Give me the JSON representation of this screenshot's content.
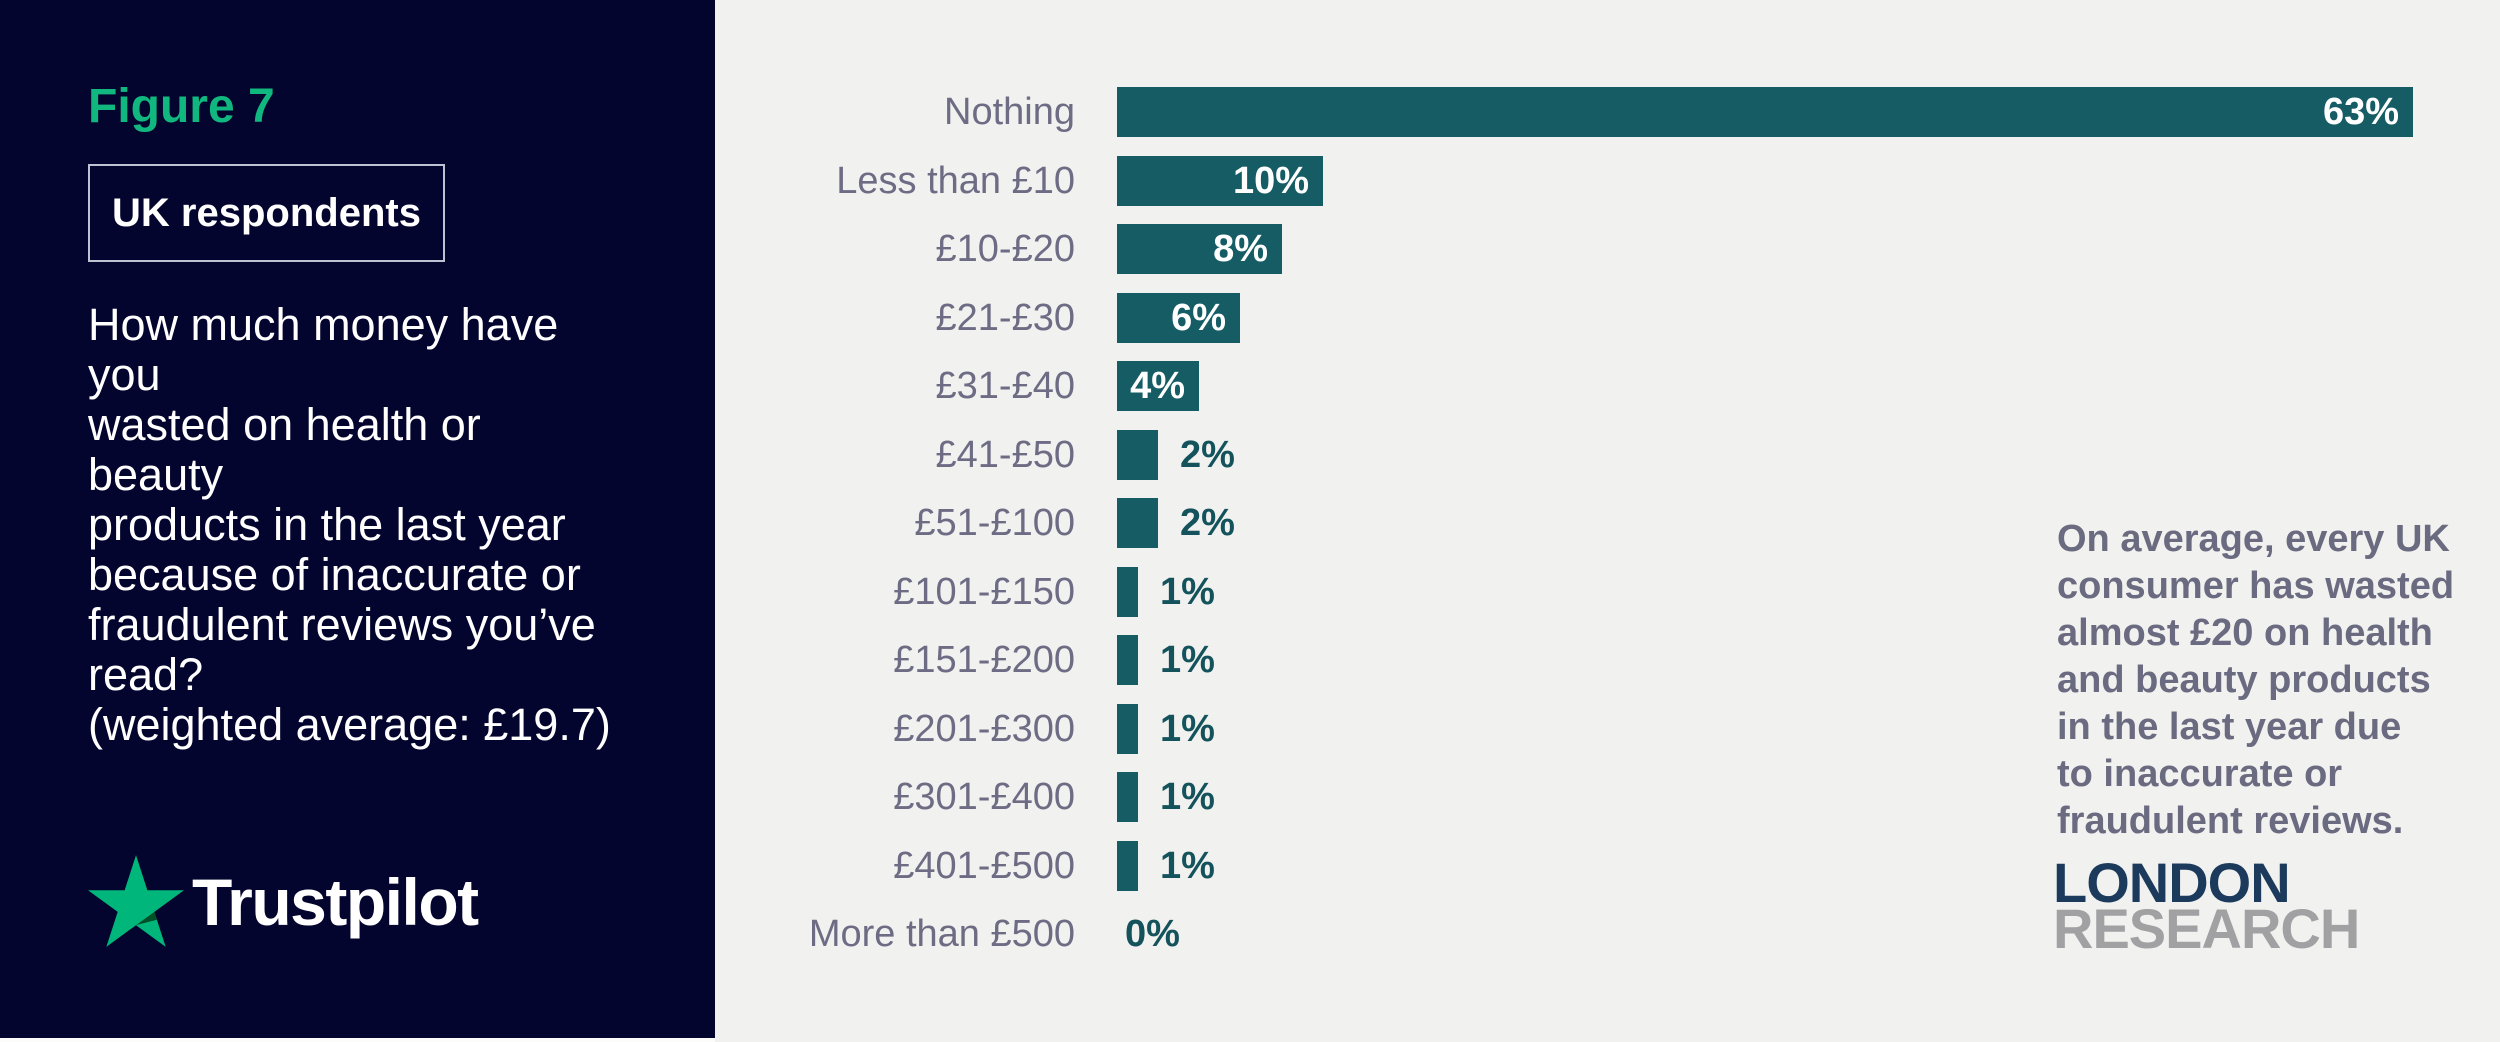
{
  "panel": {
    "figure_label": "Figure 7",
    "badge": "UK respondents",
    "question": "How much money have you\nwasted on health or beauty\nproducts in the last year\nbecause of inaccurate or\nfraudulent reviews you’ve\nread?\n(weighted average: £19.7)",
    "brand": "Trustpilot"
  },
  "chart_data": {
    "type": "bar",
    "orientation": "horizontal",
    "title": "How much money have you wasted on health or beauty products in the last year because of inaccurate or fraudulent reviews you’ve read?",
    "categories": [
      "Nothing",
      "Less than £10",
      "£10-£20",
      "£21-£30",
      "£31-£40",
      "£41-£50",
      "£51-£100",
      "£101-£150",
      "£151-£200",
      "£201-£300",
      "£301-£400",
      "£401-£500",
      "More than £500"
    ],
    "values": [
      63,
      10,
      8,
      6,
      4,
      2,
      2,
      1,
      1,
      1,
      1,
      1,
      0
    ],
    "unit": "%",
    "xlim": [
      0,
      63
    ],
    "grid": false,
    "legend": false,
    "bar_color": "#155c64",
    "value_label_inside_color": "#ffffff",
    "value_label_outside_color": "#14535c",
    "category_label_color": "#6e6c84"
  },
  "note": {
    "text": "On average, every UK\nconsumer has wasted\nalmost £20 on health\nand beauty products\nin the last year due\nto inaccurate or\nfraudulent reviews."
  },
  "research_logo": {
    "line1": "LONDON",
    "line2": "RESEARCH"
  },
  "colors": {
    "panel_bg": "#04052e",
    "page_bg": "#f1f1ef",
    "accent_green": "#00b67a",
    "star_shade_green": "#005128"
  }
}
